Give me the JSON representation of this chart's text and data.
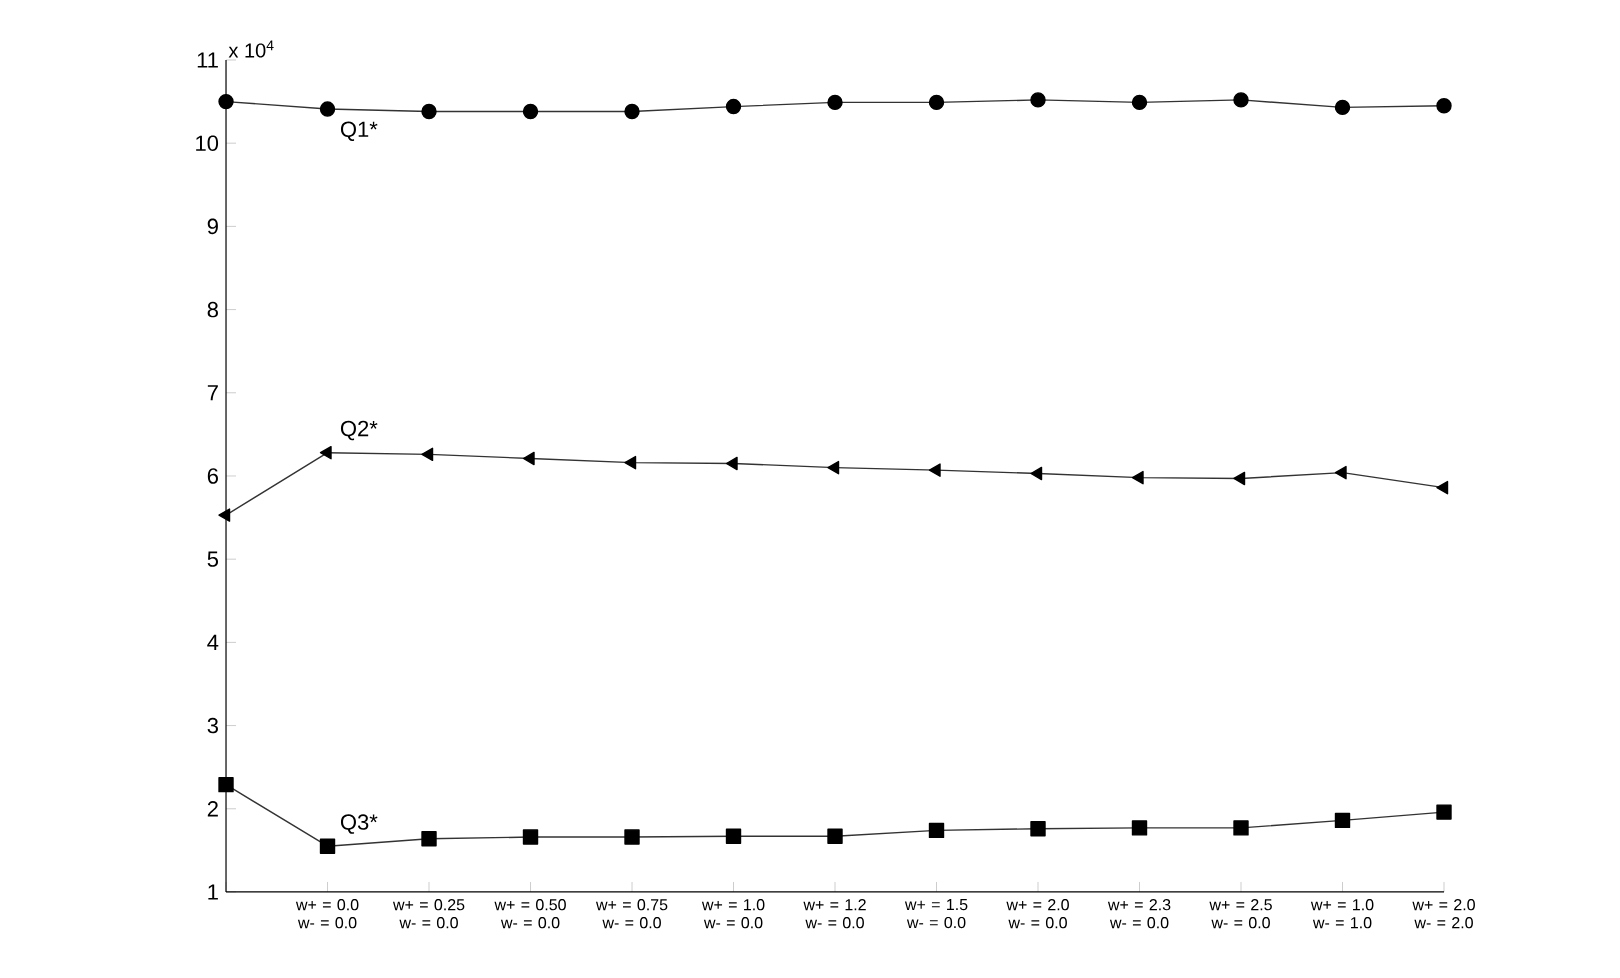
{
  "chart_data": {
    "type": "line",
    "categories": [
      null,
      "w+ = 0.0 w- = 0.0",
      "w+ = 0.25 w- = 0.0",
      "w+ = 0.50 w- = 0.0",
      "w+ = 0.75 w- = 0.0",
      "w+ = 1.0 w- = 0.0",
      "w+ = 1.2 w- = 0.0",
      "w+ = 1.5 w- = 0.0",
      "w+ = 2.0 w- = 0.0",
      "w+ = 2.3 w- = 0.0",
      "w+ = 2.5 w- = 0.0",
      "w+ = 1.0 w- = 1.0",
      "w+ = 2.0 w- = 2.0"
    ],
    "series": [
      {
        "name": "Q1*",
        "color": "#000000",
        "marker": "circle",
        "values": [
          10.5,
          10.41,
          10.38,
          10.38,
          10.38,
          10.44,
          10.49,
          10.49,
          10.52,
          10.49,
          10.52,
          10.43,
          10.45
        ]
      },
      {
        "name": "Q2*",
        "color": "#000000",
        "marker": "triangle",
        "values": [
          5.53,
          6.28,
          6.26,
          6.21,
          6.16,
          6.15,
          6.1,
          6.07,
          6.03,
          5.98,
          5.97,
          6.04,
          5.86
        ]
      },
      {
        "name": "Q3*",
        "color": "#000000",
        "marker": "square",
        "values": [
          2.29,
          1.55,
          1.64,
          1.66,
          1.66,
          1.67,
          1.67,
          1.74,
          1.76,
          1.77,
          1.77,
          1.86,
          1.96
        ]
      }
    ],
    "ylim": [
      1,
      11
    ],
    "yticks": [
      1,
      2,
      3,
      4,
      5,
      6,
      7,
      8,
      9,
      10,
      11
    ],
    "annotations": [
      "x 10$^{4}$"
    ],
    "grid": false
  }
}
